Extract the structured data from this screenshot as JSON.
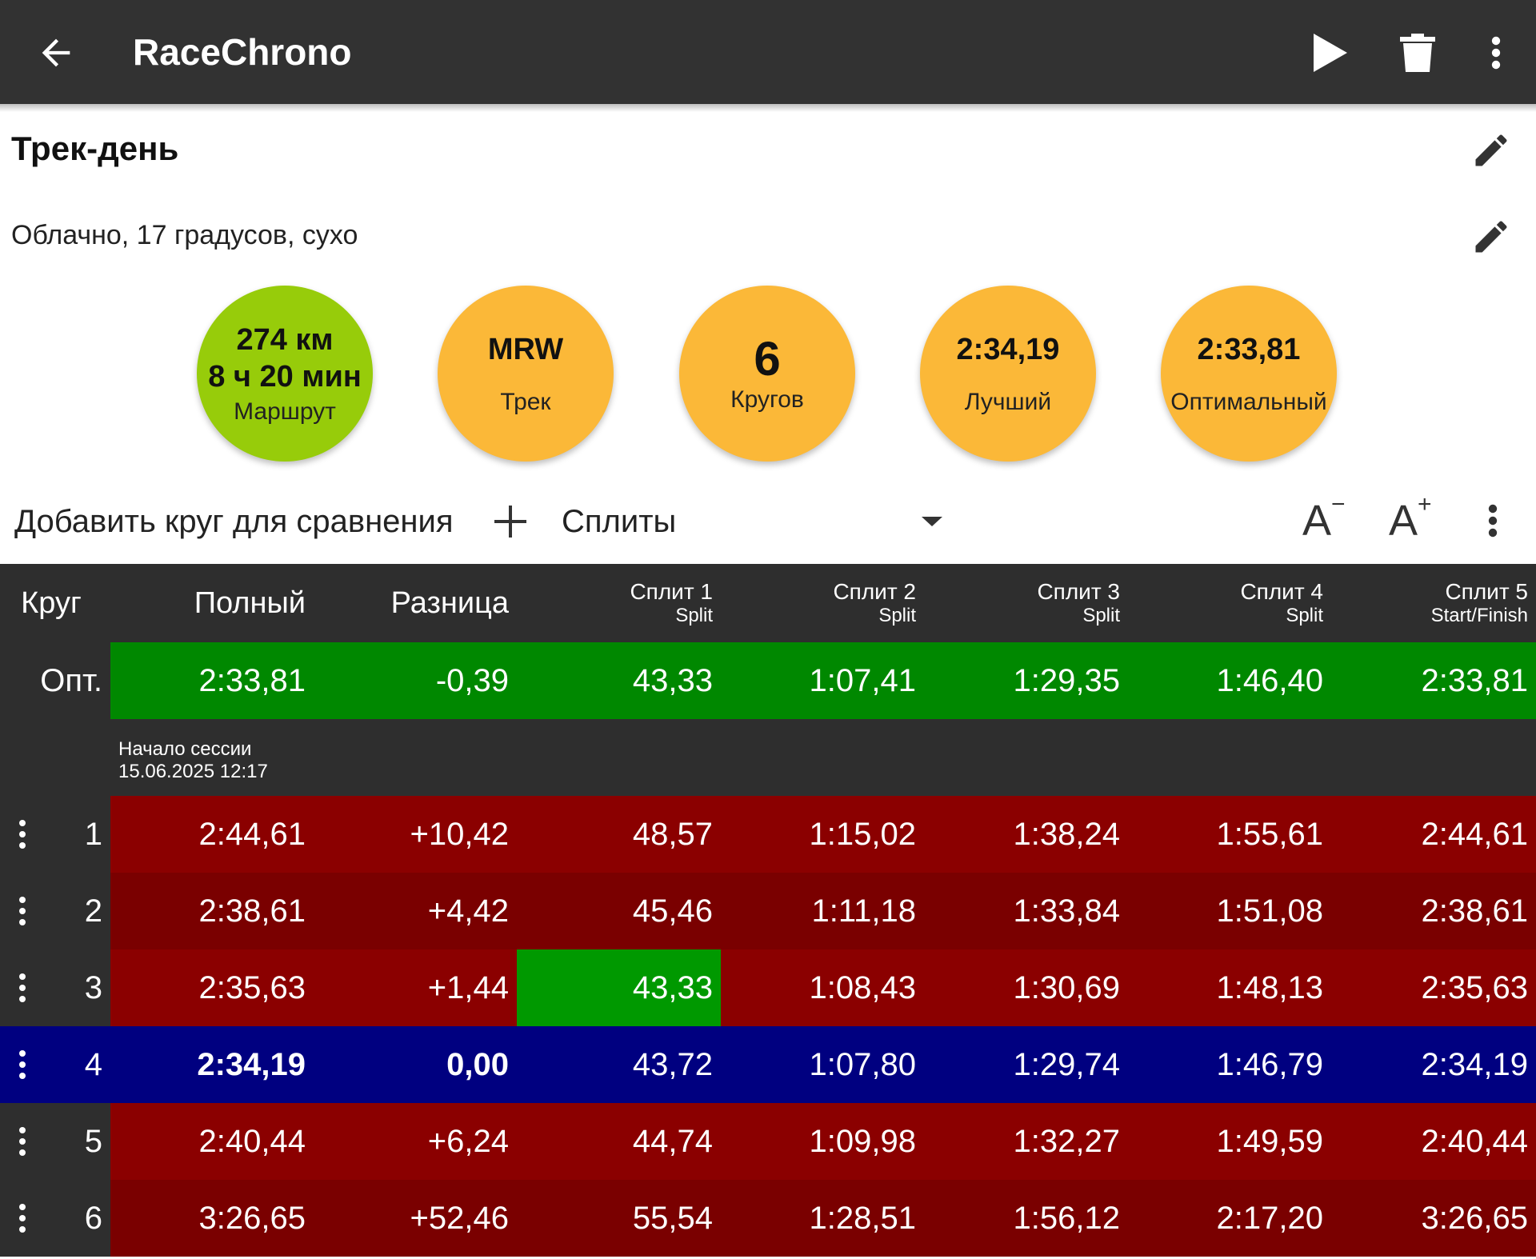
{
  "appbar": {
    "title": "RaceChrono",
    "icons": [
      "arrow-back-icon",
      "play-icon",
      "trash-icon",
      "more-vert-icon"
    ]
  },
  "session": {
    "title": "Трек-день",
    "notes": "Облачно, 17 градусов, сухо"
  },
  "stats": [
    {
      "line1": "274 км",
      "line2": "8 ч 20 мин",
      "label": "Маршрут",
      "color": "#97CC0A"
    },
    {
      "line1": "MRW",
      "label": "Трек",
      "color": "#FBB838"
    },
    {
      "line1": "6",
      "label": "Кругов",
      "color": "#FBB838"
    },
    {
      "line1": "2:34,19",
      "label": "Лучший",
      "color": "#FBB838"
    },
    {
      "line1": "2:33,81",
      "label": "Оптимальный",
      "color": "#FBB838"
    }
  ],
  "toolbar": {
    "add_lap": "Добавить круг для сравнения",
    "view_select": "Сплиты",
    "font_decrease": "A",
    "font_decrease_sup": "−",
    "font_increase": "A",
    "font_increase_sup": "+"
  },
  "table": {
    "headers": [
      {
        "label": "Круг"
      },
      {
        "label": "Полный"
      },
      {
        "label": "Разница"
      },
      {
        "label": "Сплит 1",
        "sub": "Split"
      },
      {
        "label": "Сплит 2",
        "sub": "Split"
      },
      {
        "label": "Сплит 3",
        "sub": "Split"
      },
      {
        "label": "Сплит 4",
        "sub": "Split"
      },
      {
        "label": "Сплит 5",
        "sub": "Start/Finish"
      }
    ],
    "optimal": {
      "label": "Опт.",
      "cells": [
        "2:33,81",
        "-0,39",
        "43,33",
        "1:07,41",
        "1:29,35",
        "1:46,40",
        "2:33,81"
      ]
    },
    "session_start": {
      "label": "Начало сессии",
      "datetime": "15.06.2025 12:17"
    },
    "laps": [
      {
        "lap": "1",
        "cells": [
          "2:44,61",
          "+10,42",
          "48,57",
          "1:15,02",
          "1:38,24",
          "1:55,61",
          "2:44,61"
        ],
        "bg": "#8B0000"
      },
      {
        "lap": "2",
        "cells": [
          "2:38,61",
          "+4,42",
          "45,46",
          "1:11,18",
          "1:33,84",
          "1:51,08",
          "2:38,61"
        ],
        "bg": "#7A0000"
      },
      {
        "lap": "3",
        "cells": [
          "2:35,63",
          "+1,44",
          "43,33",
          "1:08,43",
          "1:30,69",
          "1:48,13",
          "2:35,63"
        ],
        "bg": "#8B0000",
        "best_split_index": 2
      },
      {
        "lap": "4",
        "cells": [
          "2:34,19",
          "0,00",
          "43,72",
          "1:07,80",
          "1:29,74",
          "1:46,79",
          "2:34,19"
        ],
        "bg": "#000080",
        "best": true
      },
      {
        "lap": "5",
        "cells": [
          "2:40,44",
          "+6,24",
          "44,74",
          "1:09,98",
          "1:32,27",
          "1:49,59",
          "2:40,44"
        ],
        "bg": "#8B0000"
      },
      {
        "lap": "6",
        "cells": [
          "3:26,65",
          "+52,46",
          "55,54",
          "1:28,51",
          "1:56,12",
          "2:17,20",
          "3:26,65"
        ],
        "bg": "#7A0000"
      }
    ],
    "colors": {
      "optimal": "#008800",
      "best_split": "#009900",
      "dark": "#2e2e2e"
    }
  }
}
